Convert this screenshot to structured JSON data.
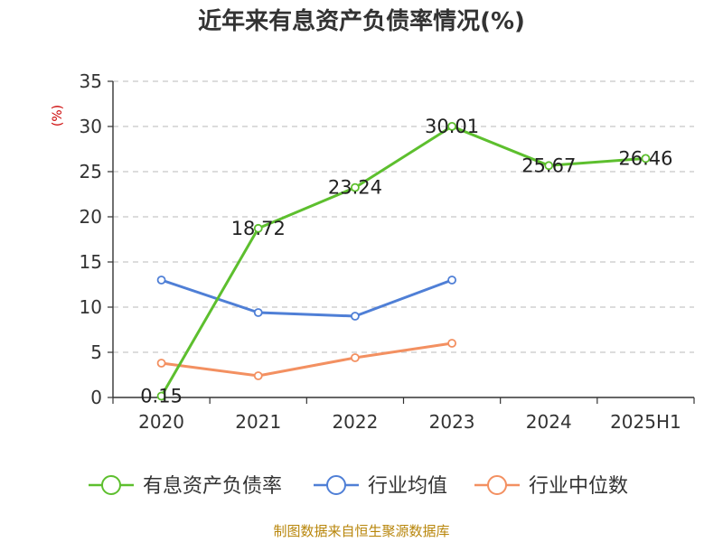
{
  "chart_data": {
    "type": "line",
    "title": "近年来有息资产负债率情况(%)",
    "ylabel": "(%)",
    "xlabel": "",
    "categories": [
      "2020",
      "2021",
      "2022",
      "2023",
      "2024",
      "2025H1"
    ],
    "ylim": [
      0,
      35
    ],
    "yticks": [
      "0",
      "5",
      "10",
      "15",
      "20",
      "25",
      "30",
      "35"
    ],
    "grid": true,
    "legend_position": "bottom",
    "series": [
      {
        "name": "有息资产负债率",
        "color": "#5dbf2e",
        "values": [
          0.15,
          18.72,
          23.24,
          30.01,
          25.67,
          26.46
        ],
        "labels": [
          "0.15",
          "18.72",
          "23.24",
          "30.01",
          "25.67",
          "26.46"
        ]
      },
      {
        "name": "行业均值",
        "color": "#4f7fd6",
        "values": [
          13.0,
          9.4,
          9.0,
          13.0,
          null,
          null
        ]
      },
      {
        "name": "行业中位数",
        "color": "#f39061",
        "values": [
          3.8,
          2.4,
          4.4,
          6.0,
          null,
          null
        ]
      }
    ],
    "source": "制图数据来自恒生聚源数据库"
  }
}
